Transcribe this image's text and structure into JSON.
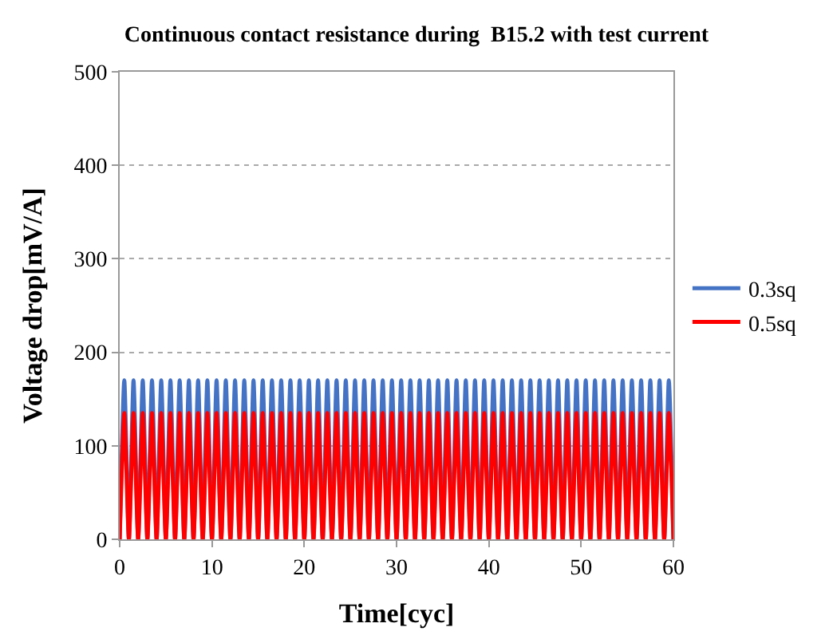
{
  "chart_data": {
    "type": "line",
    "title": "Continuous contact resistance during  B15.2 with test current",
    "xlabel": "Time[cyc]",
    "ylabel": "Voltage drop[mV/A]",
    "x": [
      0,
      0.5,
      1,
      1.5,
      2,
      2.5,
      3,
      3.5,
      4,
      4.5,
      5,
      5.5,
      6,
      6.5,
      7,
      7.5,
      8,
      8.5,
      9,
      9.5,
      10,
      10.5,
      11,
      11.5,
      12,
      12.5,
      13,
      13.5,
      14,
      14.5,
      15,
      15.5,
      16,
      16.5,
      17,
      17.5,
      18,
      18.5,
      19,
      19.5,
      20,
      20.5,
      21,
      21.5,
      22,
      22.5,
      23,
      23.5,
      24,
      24.5,
      25,
      25.5,
      26,
      26.5,
      27,
      27.5,
      28,
      28.5,
      29,
      29.5,
      30,
      30.5,
      31,
      31.5,
      32,
      32.5,
      33,
      33.5,
      34,
      34.5,
      35,
      35.5,
      36,
      36.5,
      37,
      37.5,
      38,
      38.5,
      39,
      39.5,
      40,
      40.5,
      41,
      41.5,
      42,
      42.5,
      43,
      43.5,
      44,
      44.5,
      45,
      45.5,
      46,
      46.5,
      47,
      47.5,
      48,
      48.5,
      49,
      49.5,
      50,
      50.5,
      51,
      51.5,
      52,
      52.5,
      53,
      53.5,
      54,
      54.5,
      55,
      55.5,
      56,
      56.5,
      57,
      57.5,
      58,
      58.5,
      59,
      59.5,
      60
    ],
    "series": [
      {
        "name": "0.3sq",
        "color": "#4472c4",
        "values": [
          0,
          170,
          0,
          170,
          0,
          170,
          0,
          170,
          0,
          170,
          0,
          170,
          0,
          170,
          0,
          170,
          0,
          170,
          0,
          170,
          0,
          170,
          0,
          170,
          0,
          170,
          0,
          170,
          0,
          170,
          0,
          170,
          0,
          170,
          0,
          170,
          0,
          170,
          0,
          170,
          0,
          170,
          0,
          170,
          0,
          170,
          0,
          170,
          0,
          170,
          0,
          170,
          0,
          170,
          0,
          170,
          0,
          170,
          0,
          170,
          0,
          170,
          0,
          170,
          0,
          170,
          0,
          170,
          0,
          170,
          0,
          170,
          0,
          170,
          0,
          170,
          0,
          170,
          0,
          170,
          0,
          170,
          0,
          170,
          0,
          170,
          0,
          170,
          0,
          170,
          0,
          170,
          0,
          170,
          0,
          170,
          0,
          170,
          0,
          170,
          0,
          170,
          0,
          170,
          0,
          170,
          0,
          170,
          0,
          170,
          0,
          170,
          0,
          170,
          0,
          170,
          0,
          170,
          0,
          170,
          0
        ]
      },
      {
        "name": "0.5sq",
        "color": "#ff0000",
        "values": [
          0,
          135,
          0,
          135,
          0,
          135,
          0,
          135,
          0,
          135,
          0,
          135,
          0,
          135,
          0,
          135,
          0,
          135,
          0,
          135,
          0,
          135,
          0,
          135,
          0,
          135,
          0,
          135,
          0,
          135,
          0,
          135,
          0,
          135,
          0,
          135,
          0,
          135,
          0,
          135,
          0,
          135,
          0,
          135,
          0,
          135,
          0,
          135,
          0,
          135,
          0,
          135,
          0,
          135,
          0,
          135,
          0,
          135,
          0,
          135,
          0,
          135,
          0,
          135,
          0,
          135,
          0,
          135,
          0,
          135,
          0,
          135,
          0,
          135,
          0,
          135,
          0,
          135,
          0,
          135,
          0,
          135,
          0,
          135,
          0,
          135,
          0,
          135,
          0,
          135,
          0,
          135,
          0,
          135,
          0,
          135,
          0,
          135,
          0,
          135,
          0,
          135,
          0,
          135,
          0,
          135,
          0,
          135,
          0,
          135,
          0,
          135,
          0,
          135,
          0,
          135,
          0,
          135,
          0,
          135,
          0
        ]
      }
    ],
    "xlim": [
      0,
      60
    ],
    "xticks": [
      0,
      10,
      20,
      30,
      40,
      50,
      60
    ],
    "ylim": [
      0,
      500
    ],
    "yticks": [
      0,
      100,
      200,
      300,
      400,
      500
    ],
    "grid": "y",
    "legend": "right",
    "marker": "none",
    "line_style": "solid"
  }
}
